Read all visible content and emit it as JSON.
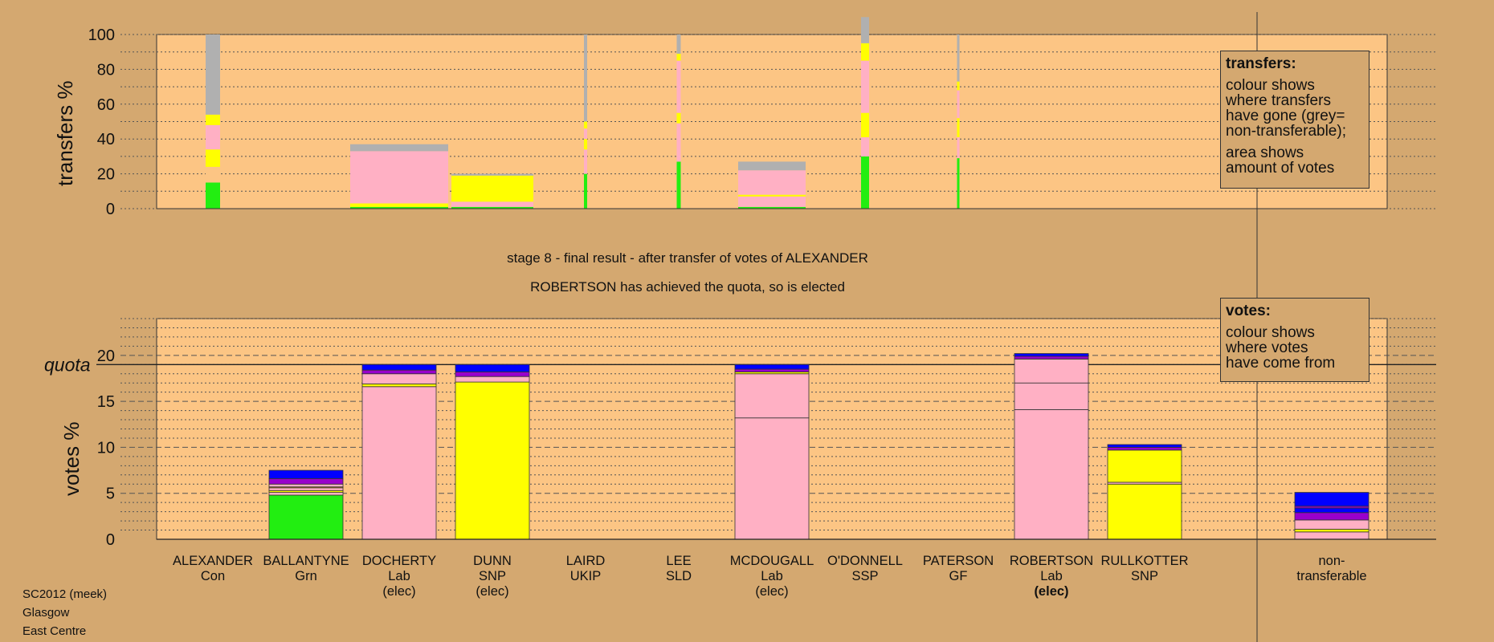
{
  "colors": {
    "background": "#d4a870",
    "plot_background": "#fcc584",
    "Con": "#0000ff",
    "Grn": "#22ee11",
    "Lab": "#ffb0c4",
    "SNP": "#ffff00",
    "UKIP": "#9900cc",
    "SLD": "#ff9900",
    "SSP": "#ff0000",
    "GF": "#ff66ff",
    "nontransferable": "#b0b0b0"
  },
  "stage_text": {
    "line1": "stage 8 - final result - after transfer of votes of ALEXANDER",
    "line2": "ROBERTSON has achieved the quota, so is elected"
  },
  "legend_transfers": {
    "title": "transfers:",
    "text1a": "colour shows",
    "text1b": "where transfers",
    "text1c": "have gone (grey=",
    "text1d": "non-transferable);",
    "text2a": "area shows",
    "text2b": "amount of votes"
  },
  "legend_votes": {
    "title": "votes:",
    "text1a": "colour shows",
    "text1b": "where votes",
    "text1c": "have come from"
  },
  "footer": {
    "line1": "SC2012 (meek)",
    "line2": "Glasgow",
    "line3": "East Centre"
  },
  "candidates": [
    {
      "name": "ALEXANDER",
      "party": "Con",
      "status": ""
    },
    {
      "name": "BALLANTYNE",
      "party": "Grn",
      "status": ""
    },
    {
      "name": "DOCHERTY",
      "party": "Lab",
      "status": "(elec)"
    },
    {
      "name": "DUNN",
      "party": "SNP",
      "status": "(elec)"
    },
    {
      "name": "LAIRD",
      "party": "UKIP",
      "status": ""
    },
    {
      "name": "LEE",
      "party": "SLD",
      "status": ""
    },
    {
      "name": "MCDOUGALL",
      "party": "Lab",
      "status": "(elec)"
    },
    {
      "name": "O'DONNELL",
      "party": "SSP",
      "status": ""
    },
    {
      "name": "PATERSON",
      "party": "GF",
      "status": ""
    },
    {
      "name": "ROBERTSON",
      "party": "Lab",
      "status": "(elec)"
    },
    {
      "name": "RULLKOTTER",
      "party": "SNP",
      "status": ""
    }
  ],
  "nontransferable_label": {
    "line1": "non-",
    "line2": "transferable"
  },
  "chart_data": [
    {
      "type": "bar",
      "ylabel": "transfers %",
      "ylim": [
        0,
        100
      ],
      "yticks": [
        0,
        20,
        40,
        60,
        80,
        100
      ],
      "categories": [
        "ALEXANDER",
        "BALLANTYNE",
        "DOCHERTY",
        "DUNN",
        "LAIRD",
        "LEE",
        "MCDOUGALL",
        "O'DONNELL",
        "PATERSON",
        "ROBERTSON",
        "RULLKOTTER"
      ],
      "transfers": [
        {
          "source": "ALEXANDER",
          "relative_width": 1.0,
          "segments": [
            {
              "party": "Grn",
              "value": 15
            },
            {
              "party": "Grn_gap",
              "value": 9
            },
            {
              "party": "SNP",
              "value": 10
            },
            {
              "party": "Lab",
              "value": 14
            },
            {
              "party": "SNP",
              "value": 6
            },
            {
              "party": "nontransferable",
              "value": 46
            }
          ]
        },
        {
          "source": "DOCHERTY",
          "relative_width": 1.0,
          "segments": [
            {
              "party": "Grn",
              "value": 1
            },
            {
              "party": "SNP",
              "value": 2
            },
            {
              "party": "Lab",
              "value": 30
            },
            {
              "party": "nontransferable",
              "value": 4
            }
          ]
        },
        {
          "source": "DUNN",
          "relative_width": 1.0,
          "segments": [
            {
              "party": "Grn",
              "value": 1
            },
            {
              "party": "Lab",
              "value": 3
            },
            {
              "party": "SNP",
              "value": 15
            },
            {
              "party": "nontransferable",
              "value": 1
            }
          ]
        },
        {
          "source": "LAIRD",
          "relative_width": 1.0,
          "segments": [
            {
              "party": "Grn",
              "value": 20
            },
            {
              "party": "Lab",
              "value": 14
            },
            {
              "party": "SNP",
              "value": 6
            },
            {
              "party": "Lab",
              "value": 6
            },
            {
              "party": "SNP",
              "value": 4
            },
            {
              "party": "nontransferable",
              "value": 50
            }
          ]
        },
        {
          "source": "LEE",
          "relative_width": 1.0,
          "segments": [
            {
              "party": "Grn",
              "value": 27
            },
            {
              "party": "Lab",
              "value": 22
            },
            {
              "party": "SNP",
              "value": 6
            },
            {
              "party": "Lab",
              "value": 30
            },
            {
              "party": "SNP",
              "value": 4
            },
            {
              "party": "nontransferable",
              "value": 11
            }
          ]
        },
        {
          "source": "MCDOUGALL",
          "relative_width": 1.0,
          "segments": [
            {
              "party": "Grn",
              "value": 1
            },
            {
              "party": "Lab",
              "value": 6
            },
            {
              "party": "SNP",
              "value": 1
            },
            {
              "party": "Lab",
              "value": 14
            },
            {
              "party": "nontransferable",
              "value": 5
            }
          ]
        },
        {
          "source": "O'DONNELL",
          "relative_width": 1.0,
          "segments": [
            {
              "party": "Grn",
              "value": 30
            },
            {
              "party": "Lab",
              "value": 11
            },
            {
              "party": "SNP",
              "value": 14
            },
            {
              "party": "Lab",
              "value": 30
            },
            {
              "party": "SNP",
              "value": 10
            },
            {
              "party": "nontransferable",
              "value": 15
            }
          ]
        },
        {
          "source": "PATERSON",
          "relative_width": 1.0,
          "segments": [
            {
              "party": "Grn",
              "value": 29
            },
            {
              "party": "Lab",
              "value": 12
            },
            {
              "party": "SNP",
              "value": 11
            },
            {
              "party": "Lab",
              "value": 16
            },
            {
              "party": "SNP",
              "value": 5
            },
            {
              "party": "nontransferable",
              "value": 27
            }
          ]
        }
      ]
    },
    {
      "type": "bar",
      "ylabel": "votes %",
      "ylim": [
        0,
        24
      ],
      "yticks": [
        0,
        5,
        10,
        15,
        20
      ],
      "quota": 19,
      "quota_label": "quota",
      "categories": [
        "ALEXANDER",
        "BALLANTYNE",
        "DOCHERTY",
        "DUNN",
        "LAIRD",
        "LEE",
        "MCDOUGALL",
        "O'DONNELL",
        "PATERSON",
        "ROBERTSON",
        "RULLKOTTER",
        "non-transferable"
      ],
      "stacks": [
        [],
        [
          {
            "party": "Grn",
            "value": 4.8
          },
          {
            "party": "Lab",
            "value": 0.3
          },
          {
            "party": "SNP",
            "value": 0.2
          },
          {
            "party": "Lab",
            "value": 0.3
          },
          {
            "party": "SLD",
            "value": 0.1
          },
          {
            "party": "Lab",
            "value": 0.3
          },
          {
            "party": "UKIP",
            "value": 0.6
          },
          {
            "party": "Con",
            "value": 0.9
          }
        ],
        [
          {
            "party": "Lab",
            "value": 16.6
          },
          {
            "party": "SNP",
            "value": 0.3
          },
          {
            "party": "Lab",
            "value": 1.1
          },
          {
            "party": "UKIP",
            "value": 0.4
          },
          {
            "party": "Con",
            "value": 0.6
          }
        ],
        [
          {
            "party": "SNP",
            "value": 17.1
          },
          {
            "party": "Lab",
            "value": 0.6
          },
          {
            "party": "UKIP",
            "value": 0.5
          },
          {
            "party": "Con",
            "value": 0.8
          }
        ],
        [],
        [],
        [
          {
            "party": "Lab",
            "value": 13.2
          },
          {
            "party": "Lab",
            "value": 4.8
          },
          {
            "party": "SNP",
            "value": 0.2
          },
          {
            "party": "UKIP",
            "value": 0.3
          },
          {
            "party": "Con",
            "value": 0.5
          }
        ],
        [],
        [],
        [
          {
            "party": "Lab",
            "value": 14.1
          },
          {
            "party": "Lab",
            "value": 2.9
          },
          {
            "party": "Lab",
            "value": 2.6
          },
          {
            "party": "UKIP",
            "value": 0.3
          },
          {
            "party": "Con",
            "value": 0.3
          }
        ],
        [
          {
            "party": "SNP",
            "value": 6.0
          },
          {
            "party": "Lab",
            "value": 0.2
          },
          {
            "party": "SNP",
            "value": 3.5
          },
          {
            "party": "UKIP",
            "value": 0.3
          },
          {
            "party": "Con",
            "value": 0.3
          }
        ],
        [
          {
            "party": "Lab",
            "value": 0.8
          },
          {
            "party": "SNP",
            "value": 0.3
          },
          {
            "party": "Lab",
            "value": 1.0
          },
          {
            "party": "UKIP",
            "value": 0.8
          },
          {
            "party": "Con",
            "value": 0.5
          },
          {
            "party": "UKIP",
            "value": 0.2
          },
          {
            "party": "Con",
            "value": 1.5
          }
        ]
      ]
    }
  ]
}
